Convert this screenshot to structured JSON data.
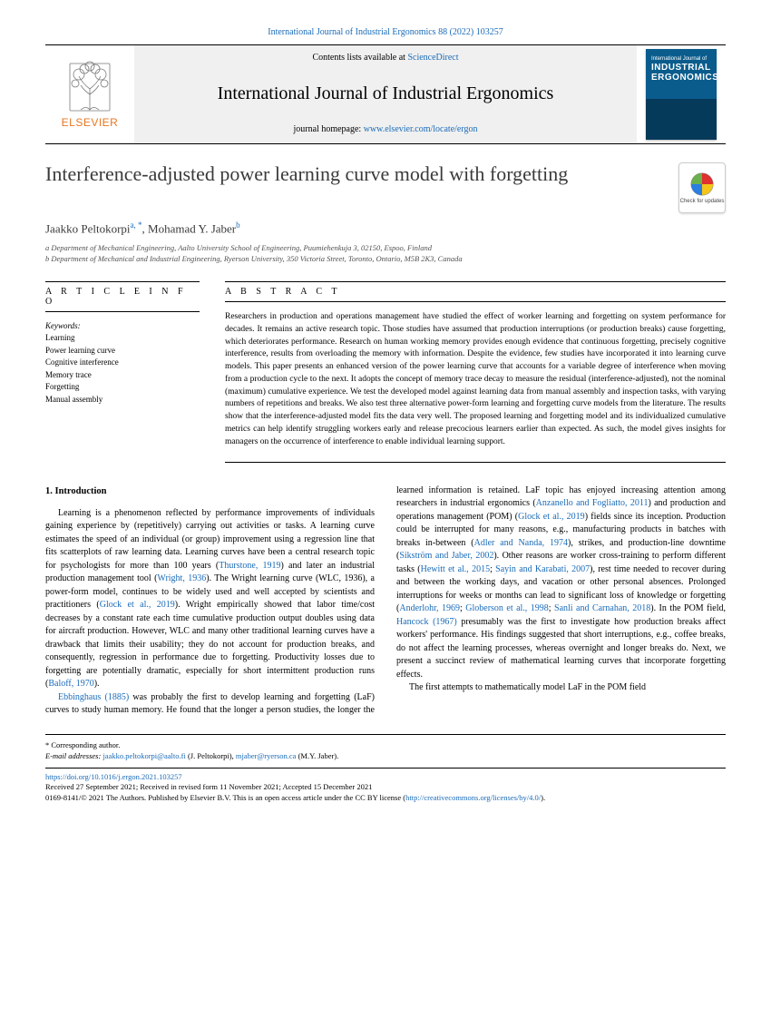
{
  "citation_line": "International Journal of Industrial Ergonomics 88 (2022) 103257",
  "header": {
    "contents_at": "Contents lists available at ",
    "sciencedirect": "ScienceDirect",
    "journal_title": "International Journal of Industrial Ergonomics",
    "homepage_label": "journal homepage: ",
    "homepage_url": "www.elsevier.com/locate/ergon",
    "publisher": "ELSEVIER",
    "cover_line1": "International Journal of",
    "cover_big1": "INDUSTRIAL",
    "cover_big2": "ERGONOMICS"
  },
  "check_updates": "Check for updates",
  "title": "Interference-adjusted power learning curve model with forgetting",
  "authors": {
    "a1_name": "Jaakko Peltokorpi",
    "a1_sup": "a, *",
    "a2_name": "Mohamad Y. Jaber",
    "a2_sup": "b"
  },
  "affiliations": {
    "a": "a Department of Mechanical Engineering, Aalto University School of Engineering, Puumiehenkuja 3, 02150, Espoo, Finland",
    "b": "b Department of Mechanical and Industrial Engineering, Ryerson University, 350 Victoria Street, Toronto, Ontario, M5B 2K3, Canada"
  },
  "info_head": "A R T I C L E  I N F O",
  "keywords_label": "Keywords:",
  "keywords": [
    "Learning",
    "Power learning curve",
    "Cognitive interference",
    "Memory trace",
    "Forgetting",
    "Manual assembly"
  ],
  "abstract_head": "A B S T R A C T",
  "abstract_text": "Researchers in production and operations management have studied the effect of worker learning and forgetting on system performance for decades. It remains an active research topic. Those studies have assumed that production interruptions (or production breaks) cause forgetting, which deteriorates performance. Research on human working memory provides enough evidence that continuous forgetting, precisely cognitive interference, results from overloading the memory with information. Despite the evidence, few studies have incorporated it into learning curve models. This paper presents an enhanced version of the power learning curve that accounts for a variable degree of interference when moving from a production cycle to the next. It adopts the concept of memory trace decay to measure the residual (interference-adjusted), not the nominal (maximum) cumulative experience. We test the developed model against learning data from manual assembly and inspection tasks, with varying numbers of repetitions and breaks. We also test three alternative power-form learning and forgetting curve models from the literature. The results show that the interference-adjusted model fits the data very well. The proposed learning and forgetting model and its individualized cumulative metrics can help identify struggling workers early and release precocious learners earlier than expected. As such, the model gives insights for managers on the occurrence of interference to enable individual learning support.",
  "section1_head": "1. Introduction",
  "body": {
    "p1a": "Learning is a phenomenon reflected by performance improvements of individuals gaining experience by (repetitively) carrying out activities or tasks. A learning curve estimates the speed of an individual (or group) improvement using a regression line that fits scatterplots of raw learning data. Learning curves have been a central research topic for psychologists for more than 100 years (",
    "c1": "Thurstone, 1919",
    "p1b": ") and later an industrial production management tool (",
    "c2": "Wright, 1936",
    "p1c": "). The Wright learning curve (WLC, 1936), a power-form model, continues to be widely used and well accepted by scientists and practitioners (",
    "c3": "Glock et al., 2019",
    "p1d": "). Wright empirically showed that labor time/cost decreases by a constant rate each time cumulative production output doubles using data for aircraft production. However, WLC and many other traditional learning curves have a drawback that limits their usability; they do not account for production breaks, and consequently, regression in performance due to forgetting. Productivity losses due to forgetting are potentially dramatic, especially for short intermittent production runs (",
    "c4": "Baloff, 1970",
    "p1e": ").",
    "p2a_c": "Ebbinghaus (1885)",
    "p2a": " was probably the first to develop learning and forgetting (LaF) curves to study human memory. He found that the ",
    "p2b": "longer a person studies, the longer the learned information is retained. LaF topic has enjoyed increasing attention among researchers in industrial ergonomics (",
    "c5": "Anzanello and Fogliatto, 2011",
    "p2c": ") and production and operations management (POM) (",
    "c6": "Glock et al., 2019",
    "p2d": ") fields since its inception. Production could be interrupted for many reasons, e.g., manufacturing products in batches with breaks in-between (",
    "c7": "Adler and Nanda, 1974",
    "p2e": "), strikes, and production-line downtime (",
    "c8": "Sikström and Jaber, 2002",
    "p2f": "). Other reasons are worker cross-training to perform different tasks (",
    "c9": "Hewitt et al., 2015",
    "p2g": "; ",
    "c10": "Sayin and Karabati, 2007",
    "p2h": "), rest time needed to recover during and between the working days, and vacation or other personal absences. Prolonged interruptions for weeks or months can lead to significant loss of knowledge or forgetting (",
    "c11": "Anderlohr, 1969",
    "p2i": "; ",
    "c12": "Globerson et al., 1998",
    "p2j": "; ",
    "c13": "Sanli and Carnahan, 2018",
    "p2k": "). In the POM field, ",
    "c14": "Hancock (1967)",
    "p2l": " presumably was the first to investigate how production breaks affect workers' performance. His findings suggested that short interruptions, e.g., coffee breaks, do not affect the learning processes, whereas overnight and longer breaks do. Next, we present a succinct review of mathematical learning curves that incorporate forgetting effects.",
    "p3": "The first attempts to mathematically model LaF in the POM field"
  },
  "footnote": {
    "corr": "* Corresponding author.",
    "email_label": "E-mail addresses: ",
    "email1": "jaakko.peltokorpi@aalto.fi",
    "email1_who": " (J. Peltokorpi), ",
    "email2": "mjaber@ryerson.ca",
    "email2_who": " (M.Y. Jaber)."
  },
  "footer": {
    "doi": "https://doi.org/10.1016/j.ergon.2021.103257",
    "received": "Received 27 September 2021; Received in revised form 11 November 2021; Accepted 15 December 2021",
    "issn_line_a": "0169-8141/© 2021 The Authors. Published by Elsevier B.V. This is an open access article under the CC BY license (",
    "cc_link": "http://creativecommons.org/licenses/by/4.0/",
    "issn_line_b": ")."
  },
  "colors": {
    "link": "#1a6bb8",
    "elsevier_orange": "#e87722",
    "cover_top": "#0a5c8c",
    "cover_bottom": "#063a5a"
  }
}
